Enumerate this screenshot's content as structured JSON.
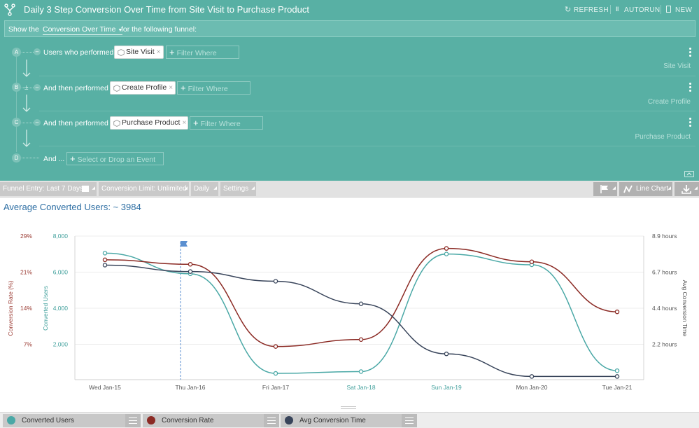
{
  "header": {
    "title": "Daily 3 Step Conversion Over Time from Site Visit to Purchase Product",
    "actions": [
      "REFRESH",
      "AUTORUN",
      "NEW"
    ]
  },
  "showbar": {
    "prefix": "Show the",
    "mode": "Conversion Over Time",
    "suffix": "for the following funnel:"
  },
  "steps": [
    {
      "letter": "A",
      "label": "Users who performed",
      "event": "Site Visit",
      "filter": "Filter Where",
      "name": "Site Visit"
    },
    {
      "letter": "B",
      "label": "And then performed",
      "event": "Create Profile",
      "filter": "Filter Where",
      "name": "Create Profile"
    },
    {
      "letter": "C",
      "label": "And then performed",
      "event": "Purchase Product",
      "filter": "Filter Where",
      "name": "Purchase Product"
    },
    {
      "letter": "D",
      "label": "And ...",
      "placeholder": "Select or Drop an Event"
    }
  ],
  "toolbar": {
    "funnel_entry": "Funnel Entry: Last 7 Days",
    "conversion_limit": "Conversion Limit: Unlimited",
    "interval": "Daily",
    "settings": "Settings",
    "chart_type": "Line Chart"
  },
  "summary": "Average Converted Users: ~ 3984",
  "legend": [
    {
      "name": "Converted Users",
      "color": "#4aa8a6"
    },
    {
      "name": "Conversion Rate",
      "color": "#8b2a24"
    },
    {
      "name": "Avg Conversion Time",
      "color": "#38445a"
    }
  ],
  "chart_data": {
    "type": "line",
    "categories": [
      "Wed Jan-15",
      "Thu Jan-16",
      "Fri Jan-17",
      "Sat Jan-18",
      "Sun Jan-19",
      "Mon Jan-20",
      "Tue Jan-21"
    ],
    "highlighted_categories": [
      "Sat Jan-18",
      "Sun Jan-19"
    ],
    "marker_category": "Thu Jan-16",
    "axes": {
      "left_outer": {
        "label": "Conversion Rate (%)",
        "ticks": [
          "29%",
          "21%",
          "14%",
          "7%"
        ],
        "range": [
          0,
          29
        ]
      },
      "left_inner": {
        "label": "Converted Users",
        "ticks": [
          "8,000",
          "6,000",
          "4,000",
          "2,000"
        ],
        "range": [
          0,
          8000
        ]
      },
      "right": {
        "label": "Avg Conversion Time",
        "ticks": [
          "8.9 hours",
          "6.7 hours",
          "4.4 hours",
          "2.2 hours"
        ],
        "range": [
          0,
          8.9
        ]
      }
    },
    "series": [
      {
        "name": "Converted Users",
        "axis": "left_inner",
        "color": "#4aa8a6",
        "values": [
          7050,
          5900,
          350,
          450,
          7000,
          6400,
          500
        ]
      },
      {
        "name": "Conversion Rate",
        "axis": "left_outer",
        "color": "#8b2a24",
        "values": [
          24.2,
          23.3,
          6.7,
          8.1,
          26.5,
          23.8,
          13.7
        ]
      },
      {
        "name": "Avg Conversion Time",
        "axis": "right",
        "color": "#38445a",
        "values": [
          7.1,
          6.7,
          6.1,
          4.7,
          1.6,
          0.2,
          0.2
        ]
      }
    ],
    "grid": true
  }
}
